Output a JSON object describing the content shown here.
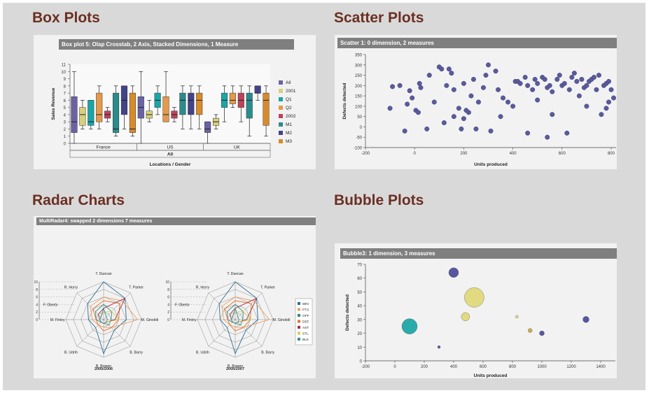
{
  "headings": {
    "box": "Box Plots",
    "scatter": "Scatter Plots",
    "radar": "Radar Charts",
    "bubble": "Bubble Plots"
  },
  "colors": {
    "heading": "#6b2f22",
    "bar": "#7f7f7f",
    "marker": "#5a5a9a"
  },
  "chart_data": [
    {
      "id": "box",
      "type": "box",
      "title": "Box plot 5: Olap Crosstab, 2 Axis, Stacked Dimensions, 1 Measure",
      "ylabel": "Sales Revenue",
      "xlabel": "Locations / Gender",
      "ylim": [
        0,
        11
      ],
      "yticks": [
        0,
        1,
        2,
        3,
        4,
        5,
        6,
        7,
        8,
        9,
        10,
        11
      ],
      "groups": [
        "France",
        "US",
        "UK"
      ],
      "group_total": "All",
      "legend": [
        "All",
        "2001",
        "Q1",
        "Q2",
        "2002",
        "M1",
        "M2",
        "M3"
      ],
      "legend_colors": [
        "#6a62a4",
        "#d8d07a",
        "#1aa6a6",
        "#e59a4a",
        "#c0425a",
        "#2a8c8c",
        "#43438a",
        "#d98a2a"
      ],
      "boxes": [
        {
          "group": "France",
          "series": "All",
          "min": 0,
          "q1": 1.5,
          "median": 3,
          "q3": 6.5,
          "max": 10
        },
        {
          "group": "France",
          "series": "2001",
          "min": 2,
          "q1": 2.5,
          "median": 4,
          "q3": 5,
          "max": 6
        },
        {
          "group": "France",
          "series": "Q1",
          "min": 2,
          "q1": 2.5,
          "median": 3,
          "q3": 6,
          "max": 6
        },
        {
          "group": "France",
          "series": "Q2",
          "min": 2,
          "q1": 3,
          "median": 4,
          "q3": 7,
          "max": 8
        },
        {
          "group": "France",
          "series": "2002",
          "min": 3,
          "q1": 3.5,
          "median": 4,
          "q3": 4.5,
          "max": 5
        },
        {
          "group": "France",
          "series": "M1",
          "min": 1,
          "q1": 1.5,
          "median": 2,
          "q3": 7,
          "max": 8
        },
        {
          "group": "France",
          "series": "M2",
          "min": 2,
          "q1": 4,
          "median": 6,
          "q3": 8,
          "max": 8
        },
        {
          "group": "France",
          "series": "M3",
          "min": 1,
          "q1": 1.5,
          "median": 2,
          "q3": 7,
          "max": 8
        },
        {
          "group": "US",
          "series": "All",
          "min": 0,
          "q1": 3.5,
          "median": 5,
          "q3": 6.5,
          "max": 10
        },
        {
          "group": "US",
          "series": "2001",
          "min": 3,
          "q1": 3.5,
          "median": 4,
          "q3": 4.5,
          "max": 6
        },
        {
          "group": "US",
          "series": "Q1",
          "min": 4,
          "q1": 5,
          "median": 6,
          "q3": 7,
          "max": 8
        },
        {
          "group": "US",
          "series": "Q2",
          "min": 3,
          "q1": 3,
          "median": 4,
          "q3": 6.5,
          "max": 10
        },
        {
          "group": "US",
          "series": "2002",
          "min": 3,
          "q1": 3.5,
          "median": 4,
          "q3": 4.5,
          "max": 5
        },
        {
          "group": "US",
          "series": "M1",
          "min": 2,
          "q1": 4,
          "median": 6,
          "q3": 7,
          "max": 8
        },
        {
          "group": "US",
          "series": "M2",
          "min": 2,
          "q1": 4,
          "median": 6,
          "q3": 7,
          "max": 8
        },
        {
          "group": "US",
          "series": "M3",
          "min": 2,
          "q1": 4,
          "median": 6,
          "q3": 7,
          "max": 8
        },
        {
          "group": "UK",
          "series": "All",
          "min": 0,
          "q1": 1.5,
          "median": 2,
          "q3": 3,
          "max": 3
        },
        {
          "group": "UK",
          "series": "2001",
          "min": 2,
          "q1": 2.5,
          "median": 3,
          "q3": 3.5,
          "max": 4
        },
        {
          "group": "UK",
          "series": "Q1",
          "min": 3,
          "q1": 5,
          "median": 6,
          "q3": 7,
          "max": 8
        },
        {
          "group": "UK",
          "series": "Q2",
          "min": 5,
          "q1": 5.5,
          "median": 6,
          "q3": 7,
          "max": 8
        },
        {
          "group": "UK",
          "series": "2002",
          "min": 3,
          "q1": 5,
          "median": 6,
          "q3": 7,
          "max": 8
        },
        {
          "group": "UK",
          "series": "M1",
          "min": 1,
          "q1": 3.5,
          "median": 6,
          "q3": 7,
          "max": 8
        },
        {
          "group": "UK",
          "series": "M2",
          "min": 6,
          "q1": 7,
          "median": 7,
          "q3": 8,
          "max": 8
        },
        {
          "group": "UK",
          "series": "M3",
          "min": 1,
          "q1": 2.5,
          "median": 6,
          "q3": 7,
          "max": 8
        }
      ]
    },
    {
      "id": "scatter",
      "type": "scatter",
      "title": "Scatter 1: 0 dimension, 2 measures",
      "xlabel": "Units produced",
      "ylabel": "Defects detected",
      "xlim": [
        -200,
        820
      ],
      "ylim": [
        -100,
        350
      ],
      "xticks": [
        -200,
        0,
        200,
        400,
        600,
        800
      ],
      "yticks": [
        -100,
        -50,
        0,
        50,
        100,
        150,
        200,
        250,
        300,
        350
      ],
      "points": [
        [
          -100,
          90
        ],
        [
          -90,
          195
        ],
        [
          -60,
          200
        ],
        [
          -40,
          -20
        ],
        [
          -30,
          110
        ],
        [
          -20,
          175
        ],
        [
          -10,
          140
        ],
        [
          5,
          80
        ],
        [
          15,
          70
        ],
        [
          20,
          210
        ],
        [
          25,
          190
        ],
        [
          50,
          -10
        ],
        [
          60,
          250
        ],
        [
          80,
          120
        ],
        [
          100,
          290
        ],
        [
          110,
          280
        ],
        [
          120,
          20
        ],
        [
          130,
          200
        ],
        [
          140,
          280
        ],
        [
          150,
          260
        ],
        [
          160,
          180
        ],
        [
          160,
          50
        ],
        [
          180,
          90
        ],
        [
          190,
          -10
        ],
        [
          200,
          210
        ],
        [
          200,
          40
        ],
        [
          210,
          80
        ],
        [
          220,
          70
        ],
        [
          230,
          150
        ],
        [
          240,
          230
        ],
        [
          250,
          -10
        ],
        [
          260,
          120
        ],
        [
          280,
          190
        ],
        [
          290,
          250
        ],
        [
          300,
          300
        ],
        [
          310,
          -20
        ],
        [
          330,
          270
        ],
        [
          340,
          180
        ],
        [
          350,
          50
        ],
        [
          360,
          140
        ],
        [
          380,
          120
        ],
        [
          400,
          100
        ],
        [
          410,
          220
        ],
        [
          420,
          220
        ],
        [
          430,
          210
        ],
        [
          450,
          240
        ],
        [
          460,
          200
        ],
        [
          460,
          -30
        ],
        [
          480,
          180
        ],
        [
          490,
          230
        ],
        [
          500,
          210
        ],
        [
          500,
          130
        ],
        [
          520,
          240
        ],
        [
          530,
          230
        ],
        [
          540,
          190
        ],
        [
          540,
          -50
        ],
        [
          550,
          200
        ],
        [
          560,
          170
        ],
        [
          560,
          60
        ],
        [
          580,
          230
        ],
        [
          590,
          250
        ],
        [
          600,
          200
        ],
        [
          610,
          210
        ],
        [
          620,
          -30
        ],
        [
          630,
          180
        ],
        [
          640,
          240
        ],
        [
          650,
          260
        ],
        [
          660,
          220
        ],
        [
          670,
          150
        ],
        [
          680,
          230
        ],
        [
          690,
          190
        ],
        [
          700,
          200
        ],
        [
          700,
          100
        ],
        [
          710,
          220
        ],
        [
          720,
          230
        ],
        [
          730,
          240
        ],
        [
          740,
          180
        ],
        [
          750,
          250
        ],
        [
          760,
          60
        ],
        [
          770,
          200
        ],
        [
          780,
          210
        ],
        [
          790,
          220
        ],
        [
          800,
          180
        ],
        [
          810,
          140
        ],
        [
          790,
          120
        ],
        [
          780,
          90
        ]
      ]
    },
    {
      "id": "radar",
      "type": "radar",
      "title": "MultiRadar4: swapped 2 dimensions 7 measures",
      "axes": [
        "T. Duncan",
        "T. Parker",
        "M. Ginobili",
        "B. Barry",
        "B. Bowen",
        "B. Udrih",
        "M. Finley",
        "R. Horry"
      ],
      "other_label": "F. Oberto",
      "scale": [
        0,
        2,
        4,
        6,
        8,
        10
      ],
      "legend": [
        "MIN",
        "PTS",
        "OFF",
        "DEF",
        "AST",
        "STL",
        "BLK"
      ],
      "legend_colors": [
        "#2e6e8e",
        "#e8a060",
        "#2a8c7a",
        "#e8702a",
        "#a0304a",
        "#d8c850",
        "#3a8a9a"
      ],
      "charts": [
        {
          "label": "2005/2006",
          "series": [
            [
              10,
              8,
              6,
              4,
              9,
              3,
              4,
              6
            ],
            [
              6,
              7,
              9,
              3,
              2,
              2,
              3,
              5
            ],
            [
              4,
              3,
              2,
              2,
              1,
              1,
              2,
              3
            ],
            [
              5,
              6,
              4,
              3,
              3,
              2,
              2,
              4
            ],
            [
              3,
              8,
              3,
              1,
              1,
              1,
              1,
              2
            ],
            [
              2,
              3,
              4,
              1,
              1,
              1,
              1,
              1
            ],
            [
              3,
              1,
              1,
              1,
              1,
              1,
              1,
              1
            ]
          ]
        },
        {
          "label": "2005/2007",
          "series": [
            [
              10,
              8,
              6,
              4,
              9,
              3,
              4,
              6
            ],
            [
              6,
              7,
              9,
              3,
              2,
              2,
              3,
              5
            ],
            [
              4,
              3,
              2,
              2,
              1,
              1,
              2,
              3
            ],
            [
              5,
              6,
              4,
              3,
              3,
              2,
              2,
              4
            ],
            [
              3,
              8,
              3,
              1,
              1,
              1,
              1,
              2
            ],
            [
              2,
              3,
              4,
              1,
              1,
              1,
              1,
              1
            ],
            [
              3,
              1,
              1,
              1,
              1,
              1,
              1,
              1
            ]
          ]
        }
      ]
    },
    {
      "id": "bubble",
      "type": "scatter",
      "title": "Bubble3: 1 dimension, 3 measures",
      "xlabel": "Units produced",
      "ylabel": "Defects detected",
      "xlim": [
        -200,
        1500
      ],
      "ylim": [
        0,
        70
      ],
      "xticks": [
        -200,
        0,
        200,
        400,
        600,
        800,
        1000,
        1200,
        1400
      ],
      "yticks": [
        0,
        10,
        20,
        30,
        40,
        50,
        60,
        70
      ],
      "bubbles": [
        {
          "x": 100,
          "y": 25,
          "size": 11,
          "color": "#1aa6a6"
        },
        {
          "x": 400,
          "y": 64,
          "size": 7,
          "color": "#4a4a9a"
        },
        {
          "x": 540,
          "y": 46,
          "size": 14,
          "color": "#e0d878"
        },
        {
          "x": 480,
          "y": 32,
          "size": 6,
          "color": "#e0d878"
        },
        {
          "x": 300,
          "y": 10,
          "size": 2,
          "color": "#4a4a9a"
        },
        {
          "x": 830,
          "y": 32,
          "size": 2,
          "color": "#e0d878"
        },
        {
          "x": 920,
          "y": 22,
          "size": 3,
          "color": "#c8a840"
        },
        {
          "x": 1000,
          "y": 20,
          "size": 3.5,
          "color": "#4a4a9a"
        },
        {
          "x": 1300,
          "y": 30,
          "size": 4.5,
          "color": "#4a4a9a"
        }
      ]
    }
  ]
}
